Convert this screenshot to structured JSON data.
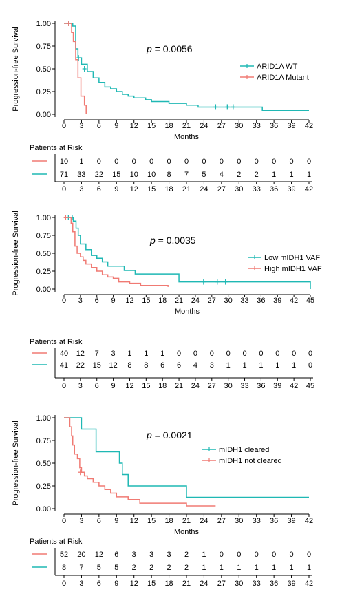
{
  "chart_data": [
    {
      "type": "line",
      "subtype": "kaplan-meier",
      "ylabel": "Progression-free Survival",
      "xlabel": "Months",
      "xlim": [
        0,
        42
      ],
      "ylim": [
        0,
        1
      ],
      "xticks": [
        0,
        3,
        6,
        9,
        12,
        15,
        18,
        21,
        24,
        27,
        30,
        33,
        36,
        39,
        42
      ],
      "yticks": [
        "0.00",
        "0.25",
        "0.50",
        "0.75",
        "1.00"
      ],
      "p_prefix": "p",
      "p_value": " = 0.0056",
      "legend_position": "right",
      "series": [
        {
          "name": "ARID1A WT",
          "color": "#1fb8b4",
          "steps": [
            [
              0,
              1.0
            ],
            [
              1.5,
              0.97
            ],
            [
              2,
              0.72
            ],
            [
              2.4,
              0.62
            ],
            [
              3,
              0.55
            ],
            [
              4,
              0.47
            ],
            [
              5,
              0.4
            ],
            [
              6,
              0.35
            ],
            [
              7,
              0.3
            ],
            [
              8,
              0.28
            ],
            [
              9,
              0.25
            ],
            [
              10,
              0.22
            ],
            [
              11,
              0.2
            ],
            [
              12,
              0.18
            ],
            [
              14,
              0.16
            ],
            [
              15,
              0.14
            ],
            [
              18,
              0.12
            ],
            [
              21,
              0.1
            ],
            [
              23,
              0.08
            ],
            [
              34,
              0.04
            ],
            [
              42,
              0.04
            ]
          ],
          "censor": [
            [
              0.8,
              1.0
            ],
            [
              2.5,
              0.62
            ],
            [
              3.5,
              0.5
            ],
            [
              26,
              0.08
            ],
            [
              28,
              0.08
            ],
            [
              29,
              0.08
            ]
          ]
        },
        {
          "name": "ARID1A Mutant",
          "color": "#f07a73",
          "steps": [
            [
              0,
              1.0
            ],
            [
              1.3,
              0.9
            ],
            [
              1.6,
              0.8
            ],
            [
              2,
              0.6
            ],
            [
              2.4,
              0.4
            ],
            [
              2.9,
              0.2
            ],
            [
              3.5,
              0.1
            ],
            [
              3.8,
              0.0
            ]
          ],
          "censor": [
            [
              0.8,
              1.0
            ]
          ]
        }
      ],
      "risk_table": {
        "title": "Patients at Risk",
        "times": [
          0,
          3,
          6,
          9,
          12,
          15,
          18,
          21,
          24,
          27,
          30,
          33,
          36,
          39,
          42
        ],
        "rows": [
          {
            "color": "#f07a73",
            "values": [
              "10",
              "1",
              "0",
              "0",
              "0",
              "0",
              "0",
              "0",
              "0",
              "0",
              "0",
              "0",
              "0",
              "0",
              "0"
            ]
          },
          {
            "color": "#1fb8b4",
            "values": [
              "71",
              "33",
              "22",
              "15",
              "10",
              "10",
              "8",
              "7",
              "5",
              "4",
              "2",
              "2",
              "1",
              "1",
              "1"
            ]
          }
        ]
      }
    },
    {
      "type": "line",
      "subtype": "kaplan-meier",
      "ylabel": "Progression-free Survival",
      "xlabel": "Months",
      "xlim": [
        0,
        45
      ],
      "ylim": [
        0,
        1
      ],
      "xticks": [
        0,
        3,
        6,
        9,
        12,
        15,
        18,
        21,
        24,
        27,
        30,
        33,
        36,
        39,
        42,
        45
      ],
      "yticks": [
        "0.00",
        "0.25",
        "0.50",
        "0.75",
        "1.00"
      ],
      "p_prefix": "p",
      "p_value": " = 0.0035",
      "legend_position": "right",
      "series": [
        {
          "name": "Low mIDH1 VAF",
          "color": "#1fb8b4",
          "steps": [
            [
              0,
              1.0
            ],
            [
              1.7,
              0.95
            ],
            [
              2.2,
              0.85
            ],
            [
              2.6,
              0.75
            ],
            [
              3,
              0.63
            ],
            [
              4,
              0.55
            ],
            [
              5,
              0.47
            ],
            [
              6,
              0.43
            ],
            [
              7,
              0.38
            ],
            [
              8,
              0.32
            ],
            [
              11,
              0.26
            ],
            [
              13,
              0.21
            ],
            [
              21,
              0.1
            ],
            [
              45,
              0.1
            ],
            [
              45,
              0.0
            ]
          ],
          "censor": [
            [
              0.8,
              1.0
            ],
            [
              1.5,
              1.0
            ],
            [
              25.5,
              0.1
            ],
            [
              28,
              0.1
            ],
            [
              29.5,
              0.1
            ]
          ]
        },
        {
          "name": "High mIDH1 VAF",
          "color": "#f07a73",
          "steps": [
            [
              0,
              1.0
            ],
            [
              1.3,
              0.92
            ],
            [
              1.6,
              0.8
            ],
            [
              2,
              0.6
            ],
            [
              2.4,
              0.5
            ],
            [
              3,
              0.45
            ],
            [
              3.5,
              0.4
            ],
            [
              4,
              0.35
            ],
            [
              5,
              0.3
            ],
            [
              6,
              0.25
            ],
            [
              7,
              0.2
            ],
            [
              8,
              0.17
            ],
            [
              9,
              0.15
            ],
            [
              10,
              0.1
            ],
            [
              12,
              0.08
            ],
            [
              14,
              0.05
            ],
            [
              19,
              0.03
            ]
          ],
          "censor": [
            [
              0.3,
              1.0
            ]
          ]
        }
      ],
      "risk_table": {
        "title": "Patients at Risk",
        "times": [
          0,
          3,
          6,
          9,
          12,
          15,
          18,
          21,
          24,
          27,
          30,
          33,
          36,
          39,
          42,
          45
        ],
        "rows": [
          {
            "color": "#f07a73",
            "values": [
              "40",
              "12",
              "7",
              "3",
              "1",
              "1",
              "1",
              "0",
              "0",
              "0",
              "0",
              "0",
              "0",
              "0",
              "0",
              "0"
            ]
          },
          {
            "color": "#1fb8b4",
            "values": [
              "41",
              "22",
              "15",
              "12",
              "8",
              "8",
              "6",
              "6",
              "4",
              "3",
              "1",
              "1",
              "1",
              "1",
              "1",
              "0"
            ]
          }
        ]
      }
    },
    {
      "type": "line",
      "subtype": "kaplan-meier",
      "ylabel": "Progression-free Survival",
      "xlabel": "Months",
      "xlim": [
        0,
        42
      ],
      "ylim": [
        0,
        1
      ],
      "xticks": [
        0,
        3,
        6,
        9,
        12,
        15,
        18,
        21,
        24,
        27,
        30,
        33,
        36,
        39,
        42
      ],
      "yticks": [
        "0.00",
        "0.25",
        "0.50",
        "0.75",
        "1.00"
      ],
      "p_prefix": "p",
      "p_value": " = 0.0021",
      "legend_position": "right",
      "series": [
        {
          "name": "mIDH1 cleared",
          "color": "#1fb8b4",
          "steps": [
            [
              0,
              1.0
            ],
            [
              3,
              0.875
            ],
            [
              5.5,
              0.625
            ],
            [
              9.5,
              0.5
            ],
            [
              10,
              0.375
            ],
            [
              11,
              0.25
            ],
            [
              21,
              0.125
            ],
            [
              42,
              0.125
            ]
          ],
          "censor": []
        },
        {
          "name": "mIDH1 not cleared",
          "color": "#f07a73",
          "steps": [
            [
              0,
              1.0
            ],
            [
              1,
              0.9
            ],
            [
              1.3,
              0.8
            ],
            [
              1.5,
              0.7
            ],
            [
              1.8,
              0.6
            ],
            [
              2.3,
              0.55
            ],
            [
              2.7,
              0.45
            ],
            [
              3,
              0.4
            ],
            [
              3.5,
              0.36
            ],
            [
              4,
              0.33
            ],
            [
              5,
              0.29
            ],
            [
              6,
              0.25
            ],
            [
              7,
              0.21
            ],
            [
              8,
              0.17
            ],
            [
              9,
              0.13
            ],
            [
              11,
              0.1
            ],
            [
              13,
              0.06
            ],
            [
              21,
              0.03
            ],
            [
              26,
              0.03
            ]
          ],
          "censor": [
            [
              2.8,
              0.4
            ]
          ]
        }
      ],
      "risk_table": {
        "title": "Patients at Risk",
        "times": [
          0,
          3,
          6,
          9,
          12,
          15,
          18,
          21,
          24,
          27,
          30,
          33,
          36,
          39,
          42
        ],
        "rows": [
          {
            "color": "#f07a73",
            "values": [
              "52",
              "20",
              "12",
              "6",
              "3",
              "3",
              "3",
              "2",
              "1",
              "0",
              "0",
              "0",
              "0",
              "0",
              "0"
            ]
          },
          {
            "color": "#1fb8b4",
            "values": [
              "8",
              "7",
              "5",
              "5",
              "2",
              "2",
              "2",
              "2",
              "1",
              "1",
              "1",
              "1",
              "1",
              "1",
              "1"
            ]
          }
        ]
      }
    }
  ]
}
